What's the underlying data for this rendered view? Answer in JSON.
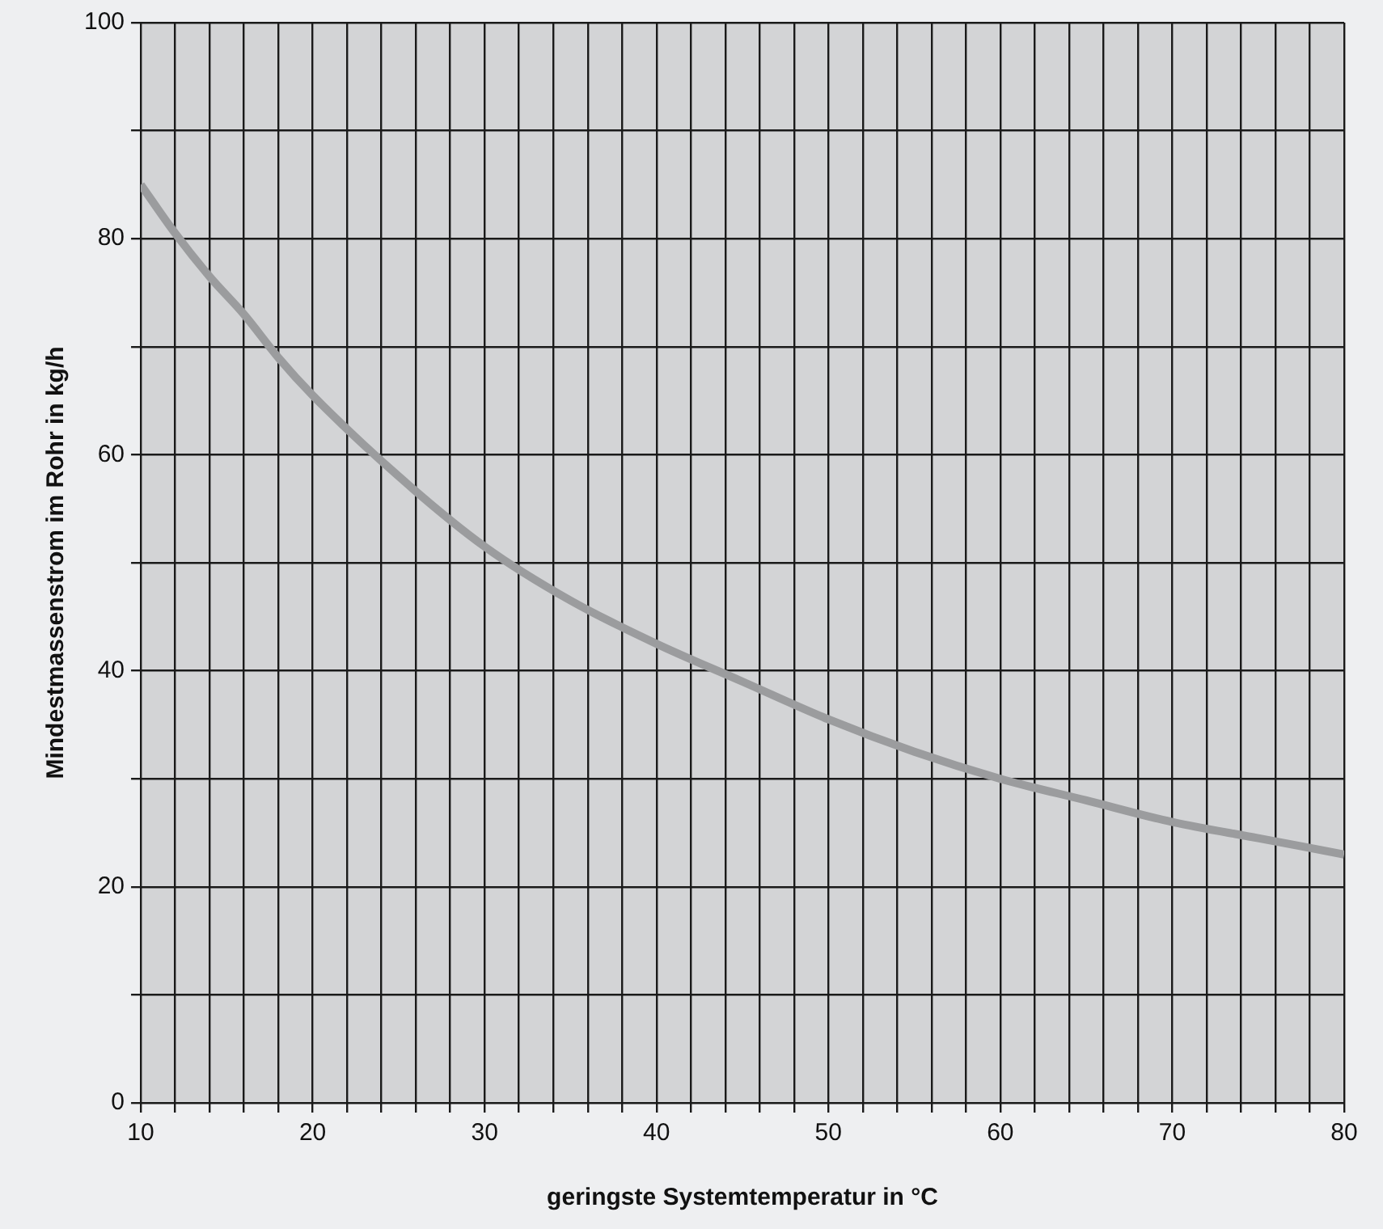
{
  "chart_data": {
    "type": "line",
    "xlabel": "geringste Systemtemperatur in °C",
    "ylabel": "Mindestmassenstrom im Rohr in kg/h",
    "x": [
      10,
      12,
      14,
      16,
      18,
      20,
      25,
      30,
      35,
      40,
      45,
      50,
      55,
      60,
      65,
      70,
      75,
      80
    ],
    "series": [
      {
        "color": "#9b9c9e",
        "values": [
          85,
          80.5,
          76.5,
          73,
          69,
          65.5,
          58,
          51.5,
          46.5,
          42.5,
          39,
          35.5,
          32.5,
          30,
          28,
          26,
          24.5,
          23
        ]
      }
    ],
    "xlim": [
      10,
      80
    ],
    "ylim": [
      0,
      100
    ],
    "xticks": [
      10,
      {
        "value": 12,
        "label": null
      },
      {
        "value": 14,
        "label": null
      },
      {
        "value": 16,
        "label": null
      },
      {
        "value": 18,
        "label": null
      },
      20,
      {
        "value": 22,
        "label": null
      },
      {
        "value": 24,
        "label": null
      },
      {
        "value": 26,
        "label": null
      },
      {
        "value": 28,
        "label": null
      },
      30,
      {
        "value": 32,
        "label": null
      },
      {
        "value": 34,
        "label": null
      },
      {
        "value": 36,
        "label": null
      },
      {
        "value": 38,
        "label": null
      },
      40,
      {
        "value": 42,
        "label": null
      },
      {
        "value": 44,
        "label": null
      },
      {
        "value": 46,
        "label": null
      },
      {
        "value": 48,
        "label": null
      },
      50,
      {
        "value": 52,
        "label": null
      },
      {
        "value": 54,
        "label": null
      },
      {
        "value": 56,
        "label": null
      },
      {
        "value": 58,
        "label": null
      },
      60,
      {
        "value": 62,
        "label": null
      },
      {
        "value": 64,
        "label": null
      },
      {
        "value": 66,
        "label": null
      },
      {
        "value": 68,
        "label": null
      },
      70,
      {
        "value": 72,
        "label": null
      },
      {
        "value": 74,
        "label": null
      },
      {
        "value": 76,
        "label": null
      },
      {
        "value": 78,
        "label": null
      },
      80
    ],
    "yticks": [
      0,
      {
        "value": 10,
        "label": null
      },
      20,
      {
        "value": 30,
        "label": null
      },
      40,
      {
        "value": 50,
        "label": null
      },
      60,
      {
        "value": 70,
        "label": null
      },
      80,
      {
        "value": 90,
        "label": null
      },
      100
    ],
    "grid": true,
    "legend": false,
    "marker": "none",
    "line_style": "solid"
  }
}
